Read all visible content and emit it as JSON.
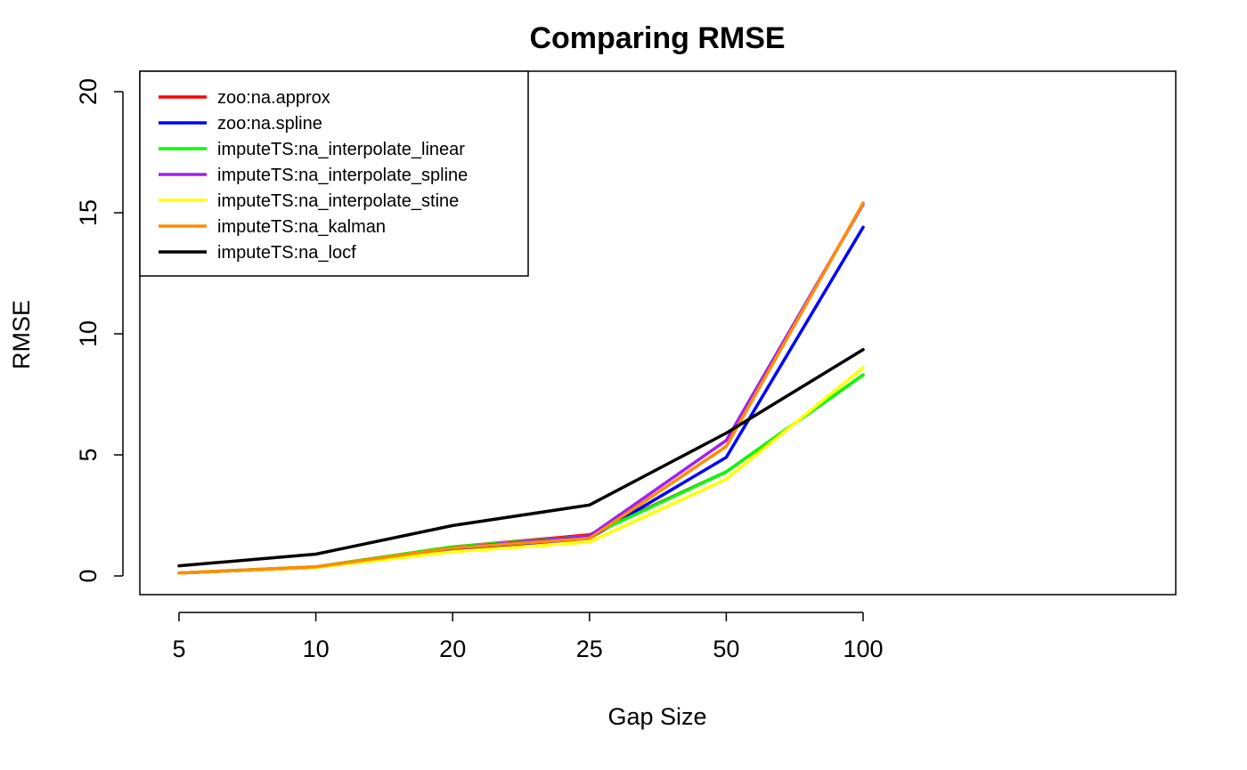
{
  "chart_data": {
    "type": "line",
    "title": "Comparing RMSE",
    "xlabel": "Gap Size",
    "ylabel": "RMSE",
    "categories": [
      "5",
      "10",
      "20",
      "25",
      "50",
      "100"
    ],
    "ylim": [
      0,
      20
    ],
    "yticks": [
      0,
      5,
      10,
      15,
      20
    ],
    "grid": false,
    "legend_position": "top-left",
    "series": [
      {
        "name": "zoo:na.approx",
        "color": "#FF0000",
        "values": [
          0.12,
          0.38,
          1.2,
          1.7,
          4.3,
          8.3
        ]
      },
      {
        "name": "zoo:na.spline",
        "color": "#0000FF",
        "values": [
          0.12,
          0.35,
          1.1,
          1.55,
          4.9,
          14.4
        ]
      },
      {
        "name": "imputeTS:na_interpolate_linear",
        "color": "#00FF00",
        "values": [
          0.12,
          0.38,
          1.2,
          1.65,
          4.3,
          8.3
        ]
      },
      {
        "name": "imputeTS:na_interpolate_spline",
        "color": "#A020F0",
        "values": [
          0.12,
          0.35,
          1.15,
          1.65,
          5.6,
          15.35
        ]
      },
      {
        "name": "imputeTS:na_interpolate_stine",
        "color": "#FFFF00",
        "values": [
          0.12,
          0.35,
          1.0,
          1.4,
          4.0,
          8.6
        ]
      },
      {
        "name": "imputeTS:na_kalman",
        "color": "#FF8C00",
        "values": [
          0.12,
          0.38,
          1.15,
          1.55,
          5.35,
          15.4
        ]
      },
      {
        "name": "imputeTS:na_locf",
        "color": "#000000",
        "values": [
          0.42,
          0.9,
          2.08,
          2.93,
          5.9,
          9.35
        ]
      }
    ]
  }
}
